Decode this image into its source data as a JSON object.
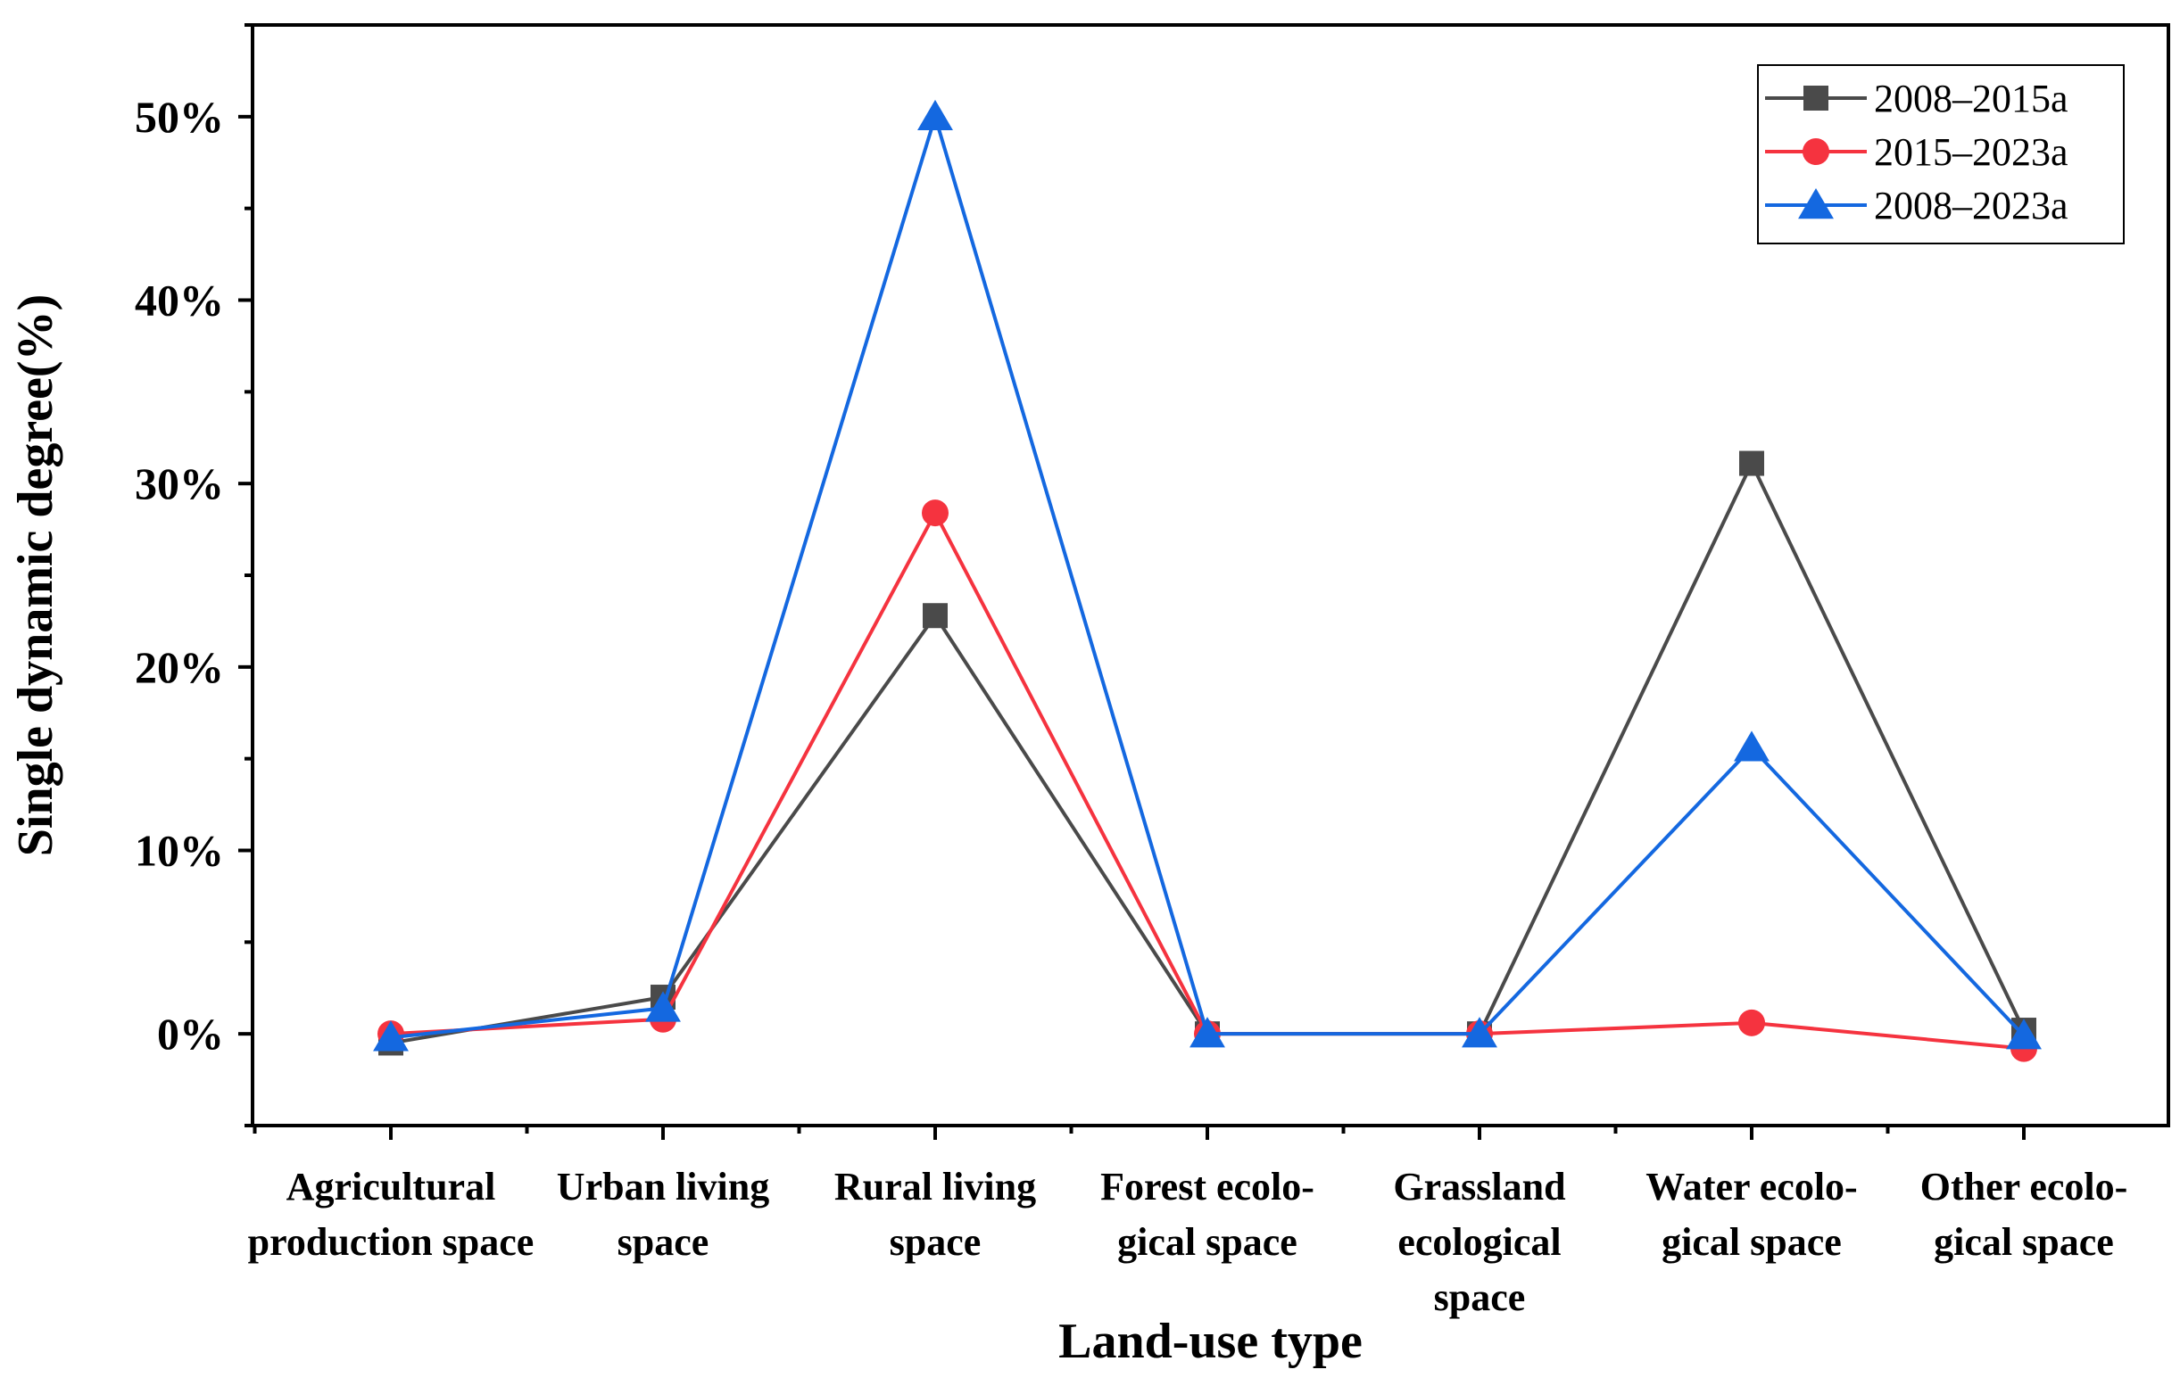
{
  "chart_data": {
    "type": "line",
    "title": "",
    "xlabel": "Land-use type",
    "ylabel": "Single dynamic degree(%)",
    "ylim": [
      -5,
      55
    ],
    "yticks": [
      0,
      10,
      20,
      30,
      40,
      50
    ],
    "ytick_labels": [
      "0%",
      "10%",
      "20%",
      "30%",
      "40%",
      "50%"
    ],
    "categories": [
      [
        "Agricultural",
        "production space"
      ],
      [
        "Urban living",
        "space"
      ],
      [
        "Rural living",
        "space"
      ],
      [
        "Forest ecolo-",
        "gical space"
      ],
      [
        "Grassland",
        "ecological",
        "space"
      ],
      [
        "Water ecolo-",
        "gical space"
      ],
      [
        "Other ecolo-",
        "gical space"
      ]
    ],
    "series": [
      {
        "name": "2008–2015a",
        "color": "#4a4a4a",
        "marker": "square",
        "values": [
          -0.5,
          2.0,
          22.8,
          0.0,
          0.0,
          31.1,
          0.2
        ]
      },
      {
        "name": "2015–2023a",
        "color": "#f5333f",
        "marker": "circle",
        "values": [
          0.0,
          0.8,
          28.4,
          0.0,
          0.0,
          0.6,
          -0.8
        ]
      },
      {
        "name": "2008–2023a",
        "color": "#1468e0",
        "marker": "triangle",
        "values": [
          -0.2,
          1.4,
          50.0,
          0.0,
          0.0,
          15.6,
          -0.1
        ]
      }
    ],
    "legend_position": "top-right",
    "grid": false
  }
}
